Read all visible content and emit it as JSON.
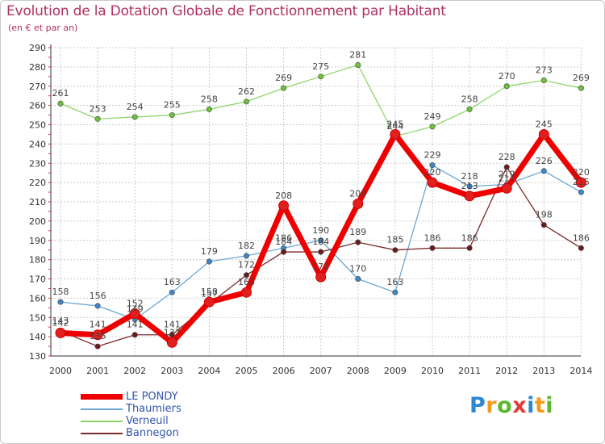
{
  "header": {
    "title": "Evolution de la Dotation Globale de Fonctionnement par Habitant",
    "subtitle": "(en € et par an)"
  },
  "brand": {
    "letters": [
      "P",
      "r",
      "o",
      "x",
      "i",
      "t",
      "i"
    ]
  },
  "colors": {
    "title": "#b03060",
    "grid": "#cccccc",
    "axis": "#333333",
    "legend_text": "#3355aa",
    "brand": [
      "#2e86d0",
      "#f29a1b",
      "#5cb82e",
      "#e23b3b",
      "#2e86d0",
      "#f29a1b",
      "#5cb82e"
    ]
  },
  "chart_data": {
    "type": "line",
    "title": "Evolution de la Dotation Globale de Fonctionnement par Habitant",
    "subtitle": "(en € et par an)",
    "xlabel": "",
    "ylabel": "",
    "x": [
      "2000",
      "2001",
      "2002",
      "2003",
      "2004",
      "2005",
      "2006",
      "2007",
      "2008",
      "2009",
      "2010",
      "2011",
      "2012",
      "2013",
      "2014"
    ],
    "ylim": [
      130,
      290
    ],
    "yticks": [
      130,
      140,
      150,
      160,
      170,
      180,
      190,
      200,
      210,
      220,
      230,
      240,
      250,
      260,
      270,
      280,
      290
    ],
    "grid": true,
    "legend_position": "bottom-left",
    "series": [
      {
        "name": "LE PONDY",
        "color": "#ee0000",
        "marker": "#e21f1f",
        "width": 7,
        "values": [
          142,
          141,
          152,
          137,
          158,
          163,
          208,
          171,
          209,
          245,
          220,
          213,
          217,
          245,
          220
        ],
        "labels": [
          "142",
          "141",
          "152",
          "137",
          "158",
          "163",
          "208",
          "171",
          "209",
          "245",
          "220",
          "213",
          "217",
          "245",
          "220"
        ]
      },
      {
        "name": "Thaumiers",
        "color": "#6aa7d6",
        "marker": "#3f86c7",
        "width": 1.3,
        "values": [
          158,
          156,
          149,
          163,
          179,
          182,
          186,
          190,
          170,
          163,
          229,
          218,
          219,
          226,
          215
        ],
        "labels": [
          "158",
          "156",
          "149",
          "163",
          "179",
          "182",
          "186",
          "190",
          "170",
          "163",
          "229",
          "218",
          "219",
          "226",
          "215"
        ]
      },
      {
        "name": "Verneuil",
        "color": "#90d66a",
        "marker": "#6cc23a",
        "width": 1.3,
        "values": [
          261,
          253,
          254,
          255,
          258,
          262,
          269,
          275,
          281,
          244,
          249,
          258,
          270,
          273,
          269
        ],
        "labels": [
          "261",
          "253",
          "254",
          "255",
          "258",
          "262",
          "269",
          "275",
          "281",
          "244",
          "249",
          "258",
          "270",
          "273",
          "269"
        ]
      },
      {
        "name": "Bannegon",
        "color": "#7a2b2b",
        "marker": "#6a1c1c",
        "width": 1.3,
        "values": [
          143,
          135,
          141,
          141,
          157,
          172,
          184,
          184,
          189,
          185,
          186,
          186,
          228,
          198,
          186
        ],
        "labels": [
          "143",
          "135",
          "141",
          "141",
          "157",
          "172",
          "184",
          "184",
          "189",
          "185",
          "186",
          "186",
          "228",
          "198",
          "186"
        ]
      }
    ]
  }
}
